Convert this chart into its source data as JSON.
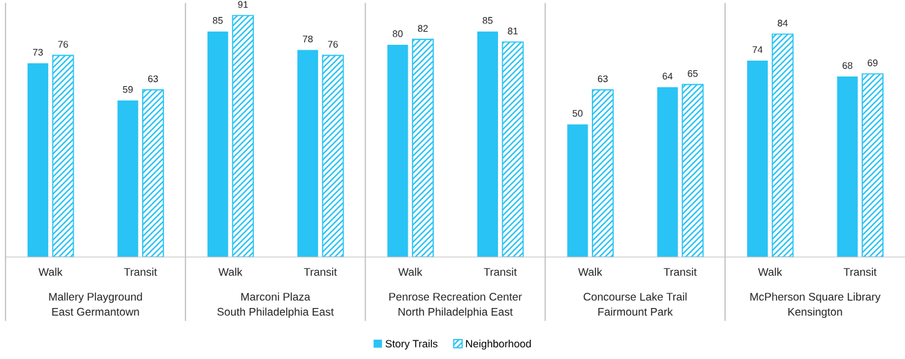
{
  "chart_data": {
    "type": "bar",
    "categories": [
      "Walk",
      "Transit",
      "Walk",
      "Transit",
      "Walk",
      "Transit",
      "Walk",
      "Transit",
      "Walk",
      "Transit"
    ],
    "series": [
      {
        "name": "Story Trails",
        "color": "#29c3f5",
        "values": [
          73,
          59,
          85,
          78,
          80,
          85,
          50,
          64,
          74,
          68
        ]
      },
      {
        "name": "Neighborhood",
        "color": "#29c3f5",
        "values": [
          76,
          63,
          91,
          76,
          82,
          81,
          63,
          65,
          84,
          69
        ]
      }
    ],
    "annotations": [
      "Mallery Playground\nEast Germantown",
      "Marconi Plaza\nSouth Philadelphia East",
      "Penrose Recreation Center\nNorth Philadelphia East",
      "Concourse Lake Trail\nFairmount Park",
      "McPherson Square Library\nKensington"
    ],
    "data_labels": true,
    "legend": "bottom"
  }
}
